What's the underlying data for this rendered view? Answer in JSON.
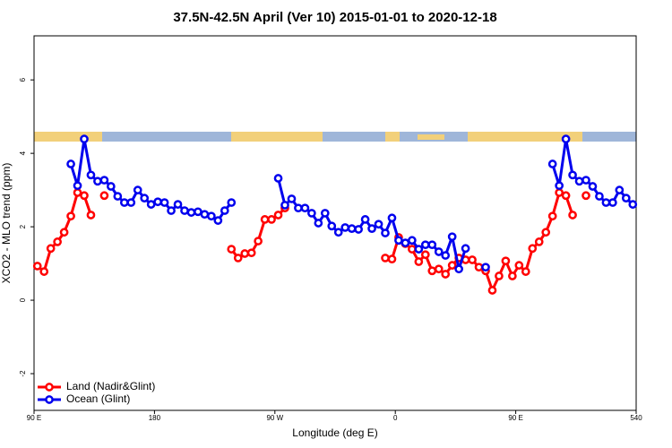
{
  "chart_data": {
    "type": "line",
    "title": "37.5N-42.5N April (Ver 10)   2015-01-01 to 2020-12-18",
    "xlabel": "Longitude (deg E)",
    "ylabel": "XCO2 - MLO trend (ppm)",
    "xlim": [
      90,
      540
    ],
    "ylim": [
      -3,
      7.2
    ],
    "xticks": [
      {
        "value": 90,
        "label": "90 E"
      },
      180,
      {
        "value": 270,
        "label": "90 W"
      },
      {
        "value": 360,
        "label": "0"
      },
      {
        "value": 450,
        "label": "90 E"
      },
      540
    ],
    "yticks": [
      -2,
      0,
      2,
      4,
      6
    ],
    "legend": "bottom-left",
    "x": [
      92.5,
      97.5,
      102.5,
      107.5,
      112.5,
      117.5,
      122.5,
      127.5,
      132.5,
      137.5,
      142.5,
      147.5,
      152.5,
      157.5,
      162.5,
      167.5,
      172.5,
      177.5,
      182.5,
      187.5,
      192.5,
      197.5,
      202.5,
      207.5,
      212.5,
      217.5,
      222.5,
      227.5,
      232.5,
      237.5,
      242.5,
      247.5,
      252.5,
      257.5,
      262.5,
      267.5,
      272.5,
      277.5,
      282.5,
      287.5,
      292.5,
      297.5,
      302.5,
      307.5,
      312.5,
      317.5,
      322.5,
      327.5,
      332.5,
      337.5,
      342.5,
      347.5,
      352.5,
      357.5,
      362.5,
      367.5,
      372.5,
      377.5,
      382.5,
      387.5,
      392.5,
      397.5,
      402.5,
      407.5,
      412.5,
      417.5,
      422.5,
      427.5,
      432.5,
      437.5,
      442.5,
      447.5,
      452.5,
      457.5,
      462.5,
      467.5,
      472.5,
      477.5,
      482.5,
      487.5,
      492.5,
      497.5,
      502.5,
      507.5,
      512.5,
      517.5,
      522.5,
      527.5,
      532.5,
      537.5
    ],
    "series": [
      {
        "name": "Land (Nadir&Glint)",
        "color": "#ff0000",
        "values": [
          0.93,
          0.78,
          1.41,
          1.59,
          1.85,
          2.29,
          2.93,
          2.85,
          2.32,
          null,
          2.85,
          null,
          null,
          null,
          null,
          null,
          null,
          null,
          null,
          null,
          null,
          null,
          null,
          null,
          null,
          null,
          null,
          null,
          null,
          1.39,
          1.15,
          1.27,
          1.29,
          1.61,
          2.2,
          2.2,
          2.32,
          2.51,
          null,
          null,
          null,
          null,
          null,
          null,
          null,
          null,
          null,
          null,
          null,
          null,
          null,
          null,
          1.15,
          1.12,
          1.71,
          1.54,
          1.39,
          1.05,
          1.24,
          0.8,
          0.85,
          0.71,
          0.95,
          1.15,
          1.1,
          1.1,
          0.9,
          0.8,
          0.27,
          0.66,
          1.07,
          0.66,
          0.95,
          0.78,
          1.41,
          1.59,
          1.85,
          2.29,
          2.93,
          2.85,
          2.32,
          null,
          2.85,
          null,
          null,
          null,
          null,
          null,
          null,
          null
        ]
      },
      {
        "name": "Ocean (Glint)",
        "color": "#0000ee",
        "values": [
          null,
          null,
          null,
          null,
          null,
          3.71,
          3.12,
          4.39,
          3.41,
          3.24,
          3.27,
          3.1,
          2.83,
          2.66,
          2.66,
          3.0,
          2.78,
          2.61,
          2.68,
          2.66,
          2.44,
          2.61,
          2.44,
          2.39,
          2.41,
          2.34,
          2.29,
          2.17,
          2.44,
          2.66,
          null,
          null,
          null,
          null,
          null,
          null,
          3.32,
          2.59,
          2.76,
          2.51,
          2.51,
          2.37,
          2.1,
          2.37,
          2.02,
          1.85,
          1.98,
          1.95,
          1.93,
          2.2,
          1.95,
          2.07,
          1.83,
          2.24,
          1.63,
          1.56,
          1.63,
          1.39,
          1.51,
          1.51,
          1.32,
          1.22,
          1.73,
          0.85,
          1.41,
          null,
          null,
          0.9,
          null,
          null,
          null,
          null,
          null,
          null,
          null,
          null,
          null,
          3.71,
          3.12,
          4.39,
          3.41,
          3.24,
          3.27,
          3.1,
          2.83,
          2.66,
          2.66,
          3.0,
          2.78,
          2.61
        ]
      }
    ]
  }
}
